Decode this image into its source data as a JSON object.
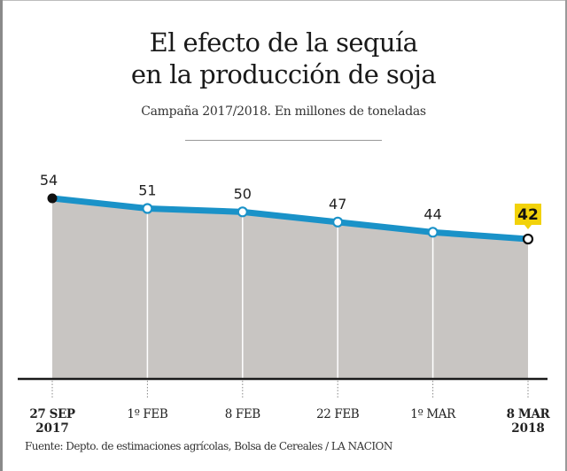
{
  "title_line1": "El efecto de la sequía",
  "title_line2": "en la producción de soja",
  "subtitle": "Campaña 2017/2018. En millones de toneladas",
  "source": "Fuente: Depto. de estimaciones agrícolas, Bolsa de Cereales / LA NACION",
  "colors": {
    "line": "#1a92c8",
    "area": "#c8c5c2",
    "highlight": "#f2d20a",
    "axis": "#1a1a1a"
  },
  "chart_data": {
    "type": "area",
    "title": "El efecto de la sequía en la producción de soja",
    "subtitle": "Campaña 2017/2018. En millones de toneladas",
    "xlabel": "",
    "ylabel": "Millones de toneladas",
    "categories": [
      {
        "line1": "27 SEP",
        "line2": "2017",
        "bold": true
      },
      {
        "line1": "1º FEB",
        "line2": "",
        "bold": false
      },
      {
        "line1": "8 FEB",
        "line2": "",
        "bold": false
      },
      {
        "line1": "22 FEB",
        "line2": "",
        "bold": false
      },
      {
        "line1": "1º MAR",
        "line2": "",
        "bold": false
      },
      {
        "line1": "8 MAR",
        "line2": "2018",
        "bold": true
      }
    ],
    "values": [
      54,
      51,
      50,
      47,
      44,
      42
    ],
    "labels": [
      "54",
      "51",
      "50",
      "47",
      "44",
      "42"
    ],
    "highlight_index": 5,
    "ylim": [
      0,
      54
    ],
    "grid": false,
    "legend": "none"
  }
}
